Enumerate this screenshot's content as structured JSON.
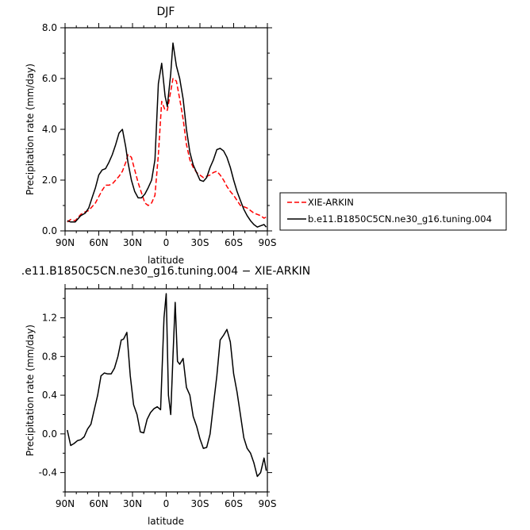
{
  "chart_data": [
    {
      "type": "line",
      "title": "DJF",
      "xlabel": "latitude",
      "ylabel": "Precipitation rate (mm/day)",
      "xlim": [
        90,
        -90
      ],
      "ylim": [
        0,
        8
      ],
      "x_tick_values": [
        90,
        60,
        30,
        0,
        -30,
        -60,
        -90
      ],
      "x_tick_labels": [
        "90N",
        "60N",
        "30N",
        "0",
        "30S",
        "60S",
        "90S"
      ],
      "y_tick_values": [
        0,
        2,
        4,
        6,
        8
      ],
      "y_tick_labels": [
        "0.0",
        "2.0",
        "4.0",
        "6.0",
        "8.0"
      ],
      "legend_position": "right of plot, lower",
      "series": [
        {
          "name": "XIE-ARKIN",
          "color": "#ff0000",
          "dash": "dashed",
          "x": [
            88,
            85,
            81,
            78,
            76,
            72,
            69,
            66,
            63,
            60,
            57,
            54,
            51,
            48,
            45,
            42,
            39,
            36,
            34,
            31,
            28,
            25,
            22,
            19,
            16,
            13,
            10,
            7,
            4,
            1,
            -1,
            -4,
            -6,
            -9,
            -12,
            -15,
            -18,
            -21,
            -24,
            -27,
            -30,
            -33,
            -36,
            -39,
            -42,
            -45,
            -48,
            -51,
            -54,
            -57,
            -60,
            -63,
            -66,
            -69,
            -72,
            -75,
            -78,
            -81,
            -84,
            -87,
            -89
          ],
          "y": [
            0.35,
            0.45,
            0.4,
            0.55,
            0.65,
            0.75,
            0.8,
            0.95,
            1.1,
            1.35,
            1.6,
            1.8,
            1.8,
            1.85,
            2.0,
            2.15,
            2.35,
            2.7,
            3.0,
            2.9,
            2.4,
            1.9,
            1.5,
            1.1,
            1.0,
            1.1,
            1.4,
            3.0,
            5.1,
            4.75,
            4.75,
            5.5,
            6.0,
            5.9,
            5.2,
            4.4,
            3.4,
            2.8,
            2.5,
            2.3,
            2.2,
            2.1,
            2.15,
            2.2,
            2.3,
            2.35,
            2.2,
            2.0,
            1.75,
            1.55,
            1.4,
            1.2,
            1.0,
            0.95,
            0.9,
            0.8,
            0.7,
            0.65,
            0.6,
            0.5,
            0.55
          ]
        },
        {
          "name": "b.e11.B1850C5CN.ne30_g16.tuning.004",
          "color": "#000000",
          "dash": "solid",
          "x": [
            88,
            85,
            81,
            78,
            76,
            72,
            69,
            66,
            63,
            60,
            57,
            54,
            51,
            48,
            45,
            42,
            39,
            36,
            34,
            31,
            28,
            25,
            22,
            19,
            16,
            13,
            10,
            7,
            4,
            1,
            -1,
            -4,
            -6,
            -9,
            -12,
            -15,
            -18,
            -21,
            -24,
            -27,
            -30,
            -33,
            -36,
            -39,
            -42,
            -45,
            -48,
            -51,
            -54,
            -57,
            -60,
            -63,
            -66,
            -69,
            -72,
            -75,
            -78,
            -81,
            -84,
            -87,
            -89
          ],
          "y": [
            0.4,
            0.35,
            0.35,
            0.5,
            0.6,
            0.7,
            0.9,
            1.3,
            1.7,
            2.2,
            2.4,
            2.45,
            2.7,
            3.0,
            3.4,
            3.85,
            4.0,
            3.3,
            2.7,
            2.0,
            1.55,
            1.3,
            1.3,
            1.45,
            1.7,
            2.0,
            2.8,
            5.8,
            6.6,
            5.3,
            4.9,
            6.2,
            7.4,
            6.5,
            6.0,
            5.2,
            4.0,
            3.1,
            2.6,
            2.3,
            2.0,
            1.95,
            2.1,
            2.5,
            2.8,
            3.2,
            3.25,
            3.15,
            2.9,
            2.5,
            2.0,
            1.55,
            1.2,
            0.85,
            0.6,
            0.4,
            0.25,
            0.15,
            0.2,
            0.25,
            0.15
          ]
        }
      ]
    },
    {
      "type": "line",
      "title": ".e11.B1850C5CN.ne30_g16.tuning.004 − XIE-ARKIN",
      "xlabel": "latitude",
      "ylabel": "Precipitation rate (mm/day)",
      "xlim": [
        90,
        -90
      ],
      "ylim": [
        -0.6,
        1.5
      ],
      "x_tick_values": [
        90,
        60,
        30,
        0,
        -30,
        -60,
        -90
      ],
      "x_tick_labels": [
        "90N",
        "60N",
        "30N",
        "0",
        "30S",
        "60S",
        "90S"
      ],
      "y_tick_values": [
        -0.4,
        0.0,
        0.4,
        0.8,
        1.2
      ],
      "y_tick_labels": [
        "-0.4",
        "0.0",
        "0.4",
        "0.8",
        "1.2"
      ],
      "series": [
        {
          "color": "#000000",
          "dash": "solid",
          "x": [
            88,
            85,
            82,
            79,
            76,
            73,
            70,
            67,
            64,
            61,
            58,
            55,
            52,
            49,
            46,
            43,
            40,
            38,
            35,
            32,
            29,
            26,
            23,
            20,
            17,
            14,
            11,
            8,
            5,
            2,
            0,
            -2,
            -4,
            -6,
            -8,
            -10,
            -12,
            -15,
            -18,
            -21,
            -24,
            -27,
            -30,
            -33,
            -36,
            -39,
            -42,
            -45,
            -48,
            -51,
            -54,
            -57,
            -60,
            -63,
            -66,
            -69,
            -72,
            -75,
            -78,
            -81,
            -84,
            -87,
            -89
          ],
          "y": [
            0.04,
            -0.12,
            -0.1,
            -0.07,
            -0.06,
            -0.03,
            0.05,
            0.1,
            0.25,
            0.4,
            0.6,
            0.63,
            0.62,
            0.62,
            0.68,
            0.8,
            0.97,
            0.98,
            1.05,
            0.6,
            0.3,
            0.2,
            0.02,
            0.01,
            0.15,
            0.22,
            0.26,
            0.28,
            0.25,
            1.2,
            1.45,
            0.4,
            0.2,
            0.8,
            1.36,
            0.75,
            0.72,
            0.78,
            0.48,
            0.4,
            0.18,
            0.08,
            -0.05,
            -0.15,
            -0.14,
            0.0,
            0.3,
            0.6,
            0.97,
            1.02,
            1.08,
            0.95,
            0.62,
            0.43,
            0.2,
            -0.04,
            -0.15,
            -0.2,
            -0.3,
            -0.44,
            -0.4,
            -0.25,
            -0.38
          ]
        }
      ]
    }
  ]
}
